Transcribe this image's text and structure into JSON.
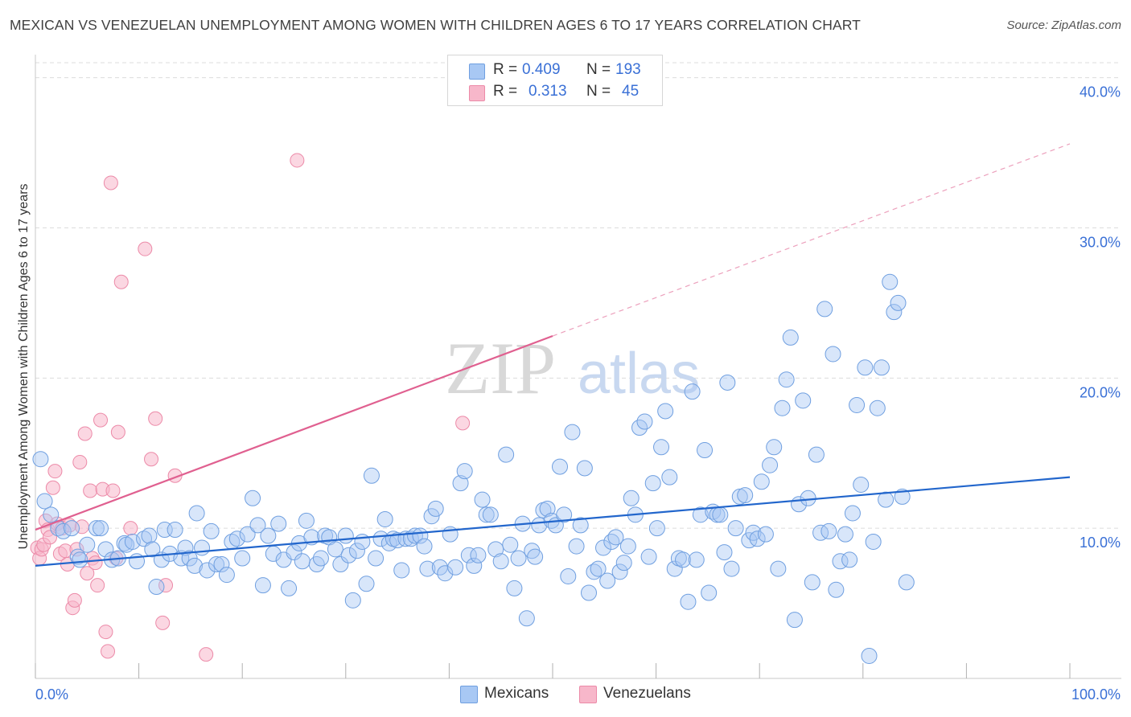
{
  "header": {
    "title": "MEXICAN VS VENEZUELAN UNEMPLOYMENT AMONG WOMEN WITH CHILDREN AGES 6 TO 17 YEARS CORRELATION CHART",
    "source": "Source: ZipAtlas.com"
  },
  "watermark": {
    "zip": "ZIP",
    "atlas": "atlas"
  },
  "legend": {
    "rows": [
      {
        "r_label": "R =",
        "r_value": "0.409",
        "n_label": "N =",
        "n_value": "193",
        "color": "#a8c8f4"
      },
      {
        "r_label": "R =",
        "r_value": "0.313",
        "n_label": "N =",
        "n_value": "45",
        "color": "#f7b7ca"
      }
    ]
  },
  "bottom_legend": [
    {
      "label": "Mexicans",
      "color": "#a8c8f4"
    },
    {
      "label": "Venezuelans",
      "color": "#f7b7ca"
    }
  ],
  "colors": {
    "mexicans_fill": "#a8c8f4",
    "mexicans_stroke": "#6f9fe0",
    "mexicans_line": "#2266cc",
    "venezuelans_fill": "#f7b7ca",
    "venezuelans_stroke": "#ec8aa8",
    "venezuelans_line": "#e06090",
    "tick_label": "#3a70d6",
    "grid": "#dcdcdc"
  },
  "chart_data": {
    "type": "scatter",
    "title": "MEXICAN VS VENEZUELAN UNEMPLOYMENT AMONG WOMEN WITH CHILDREN AGES 6 TO 17 YEARS CORRELATION CHART",
    "xlabel": "",
    "ylabel": "Unemployment Among Women with Children Ages 6 to 17 years",
    "xlim": [
      0,
      100
    ],
    "ylim": [
      0,
      41
    ],
    "x_tick_labels": [
      "0.0%",
      "100.0%"
    ],
    "y_ticks": [
      10,
      20,
      30,
      40
    ],
    "y_tick_labels": [
      "10.0%",
      "20.0%",
      "30.0%",
      "40.0%"
    ],
    "grid": true,
    "legend_position": "top-center",
    "series": [
      {
        "name": "Mexicans",
        "r": 0.409,
        "n": 193,
        "trend": {
          "x": [
            0,
            100
          ],
          "y": [
            7.5,
            13.4
          ]
        },
        "points": [
          [
            0.5,
            14.6
          ],
          [
            0.9,
            11.8
          ],
          [
            1.5,
            10.9
          ],
          [
            2.2,
            10.0
          ],
          [
            2.7,
            9.8
          ],
          [
            3.5,
            10.0
          ],
          [
            4.1,
            8.1
          ],
          [
            4.3,
            7.9
          ],
          [
            5.0,
            8.9
          ],
          [
            5.9,
            10.0
          ],
          [
            6.3,
            10.0
          ],
          [
            6.8,
            8.6
          ],
          [
            7.4,
            7.9
          ],
          [
            8.0,
            8.0
          ],
          [
            8.6,
            9.0
          ],
          [
            8.8,
            8.9
          ],
          [
            9.4,
            9.1
          ],
          [
            9.8,
            7.8
          ],
          [
            10.5,
            9.3
          ],
          [
            11.0,
            9.5
          ],
          [
            11.3,
            8.6
          ],
          [
            11.7,
            6.1
          ],
          [
            12.2,
            7.9
          ],
          [
            12.5,
            9.9
          ],
          [
            13.0,
            8.3
          ],
          [
            13.5,
            9.9
          ],
          [
            14.1,
            8.0
          ],
          [
            14.5,
            8.7
          ],
          [
            14.9,
            8.0
          ],
          [
            15.4,
            7.5
          ],
          [
            15.6,
            11.0
          ],
          [
            16.1,
            8.7
          ],
          [
            16.6,
            7.2
          ],
          [
            17.0,
            9.8
          ],
          [
            17.5,
            7.6
          ],
          [
            18.0,
            7.6
          ],
          [
            18.5,
            6.9
          ],
          [
            19.0,
            9.1
          ],
          [
            19.5,
            9.3
          ],
          [
            20.0,
            8.0
          ],
          [
            20.5,
            9.6
          ],
          [
            21.0,
            12.0
          ],
          [
            21.5,
            10.2
          ],
          [
            22.0,
            6.2
          ],
          [
            22.5,
            9.5
          ],
          [
            23.0,
            8.3
          ],
          [
            23.5,
            10.3
          ],
          [
            24.0,
            7.9
          ],
          [
            24.5,
            6.0
          ],
          [
            25.0,
            8.4
          ],
          [
            25.5,
            9.0
          ],
          [
            25.8,
            7.8
          ],
          [
            26.2,
            10.5
          ],
          [
            26.7,
            9.4
          ],
          [
            27.2,
            7.6
          ],
          [
            27.6,
            8.0
          ],
          [
            28.0,
            9.5
          ],
          [
            28.4,
            9.4
          ],
          [
            29.0,
            8.6
          ],
          [
            29.5,
            7.6
          ],
          [
            30.0,
            9.5
          ],
          [
            30.3,
            8.2
          ],
          [
            30.7,
            5.2
          ],
          [
            31.1,
            8.5
          ],
          [
            31.6,
            9.1
          ],
          [
            32.0,
            6.3
          ],
          [
            32.5,
            13.5
          ],
          [
            32.9,
            8.0
          ],
          [
            33.4,
            9.3
          ],
          [
            33.8,
            10.6
          ],
          [
            34.2,
            9.0
          ],
          [
            34.6,
            9.3
          ],
          [
            35.0,
            9.2
          ],
          [
            35.4,
            7.2
          ],
          [
            35.8,
            9.3
          ],
          [
            36.3,
            9.3
          ],
          [
            36.7,
            9.5
          ],
          [
            37.2,
            9.5
          ],
          [
            37.6,
            8.8
          ],
          [
            37.9,
            7.3
          ],
          [
            38.3,
            10.8
          ],
          [
            38.7,
            11.3
          ],
          [
            39.1,
            7.4
          ],
          [
            39.6,
            7.0
          ],
          [
            40.1,
            9.6
          ],
          [
            40.6,
            7.4
          ],
          [
            41.1,
            13.0
          ],
          [
            41.5,
            13.8
          ],
          [
            41.9,
            8.2
          ],
          [
            42.4,
            7.5
          ],
          [
            42.8,
            8.2
          ],
          [
            43.2,
            11.9
          ],
          [
            43.6,
            10.9
          ],
          [
            44.0,
            10.9
          ],
          [
            44.5,
            8.6
          ],
          [
            45.0,
            7.8
          ],
          [
            45.5,
            14.9
          ],
          [
            45.9,
            8.9
          ],
          [
            46.3,
            6.0
          ],
          [
            46.7,
            8.0
          ],
          [
            47.1,
            10.3
          ],
          [
            47.5,
            4.0
          ],
          [
            48.0,
            8.5
          ],
          [
            48.3,
            8.1
          ],
          [
            48.7,
            10.2
          ],
          [
            49.1,
            11.2
          ],
          [
            49.5,
            11.3
          ],
          [
            49.9,
            10.5
          ],
          [
            50.3,
            10.2
          ],
          [
            50.7,
            14.1
          ],
          [
            51.1,
            10.9
          ],
          [
            51.5,
            6.8
          ],
          [
            51.9,
            16.4
          ],
          [
            52.3,
            8.8
          ],
          [
            52.7,
            10.2
          ],
          [
            53.1,
            14.0
          ],
          [
            53.5,
            5.7
          ],
          [
            54.0,
            7.1
          ],
          [
            54.4,
            7.3
          ],
          [
            54.9,
            8.7
          ],
          [
            55.3,
            6.5
          ],
          [
            55.7,
            9.1
          ],
          [
            56.1,
            9.4
          ],
          [
            56.5,
            7.1
          ],
          [
            56.9,
            7.7
          ],
          [
            57.3,
            8.8
          ],
          [
            57.6,
            12.0
          ],
          [
            58.0,
            10.9
          ],
          [
            58.4,
            16.7
          ],
          [
            58.9,
            17.1
          ],
          [
            59.3,
            8.1
          ],
          [
            59.7,
            13.0
          ],
          [
            60.1,
            10.0
          ],
          [
            60.5,
            15.4
          ],
          [
            60.9,
            17.8
          ],
          [
            61.3,
            13.4
          ],
          [
            61.8,
            7.3
          ],
          [
            62.2,
            8.0
          ],
          [
            62.6,
            7.9
          ],
          [
            63.1,
            5.1
          ],
          [
            63.5,
            19.1
          ],
          [
            63.9,
            7.9
          ],
          [
            64.3,
            10.9
          ],
          [
            64.7,
            15.2
          ],
          [
            65.1,
            5.7
          ],
          [
            65.5,
            11.1
          ],
          [
            65.9,
            10.9
          ],
          [
            66.2,
            10.9
          ],
          [
            66.6,
            8.4
          ],
          [
            66.9,
            19.7
          ],
          [
            67.3,
            7.3
          ],
          [
            67.7,
            10.0
          ],
          [
            68.1,
            12.1
          ],
          [
            68.6,
            12.2
          ],
          [
            69.0,
            9.2
          ],
          [
            69.4,
            9.7
          ],
          [
            69.8,
            9.3
          ],
          [
            70.2,
            13.1
          ],
          [
            70.6,
            9.6
          ],
          [
            71.0,
            14.2
          ],
          [
            71.4,
            15.4
          ],
          [
            71.8,
            7.3
          ],
          [
            72.2,
            18.0
          ],
          [
            72.6,
            19.9
          ],
          [
            73.0,
            22.7
          ],
          [
            73.4,
            3.9
          ],
          [
            73.8,
            11.6
          ],
          [
            74.2,
            18.5
          ],
          [
            74.7,
            12.0
          ],
          [
            75.1,
            6.4
          ],
          [
            75.5,
            14.9
          ],
          [
            75.9,
            9.7
          ],
          [
            76.3,
            24.6
          ],
          [
            76.7,
            9.8
          ],
          [
            77.1,
            21.6
          ],
          [
            77.4,
            5.9
          ],
          [
            77.8,
            7.8
          ],
          [
            78.3,
            9.6
          ],
          [
            78.7,
            7.9
          ],
          [
            79.0,
            11.0
          ],
          [
            79.4,
            18.2
          ],
          [
            79.8,
            12.9
          ],
          [
            80.2,
            20.7
          ],
          [
            80.6,
            1.5
          ],
          [
            81.0,
            9.1
          ],
          [
            81.4,
            18.0
          ],
          [
            81.8,
            20.7
          ],
          [
            82.2,
            11.9
          ],
          [
            82.6,
            26.4
          ],
          [
            83.0,
            24.4
          ],
          [
            83.4,
            25.0
          ],
          [
            83.8,
            12.1
          ],
          [
            84.2,
            6.4
          ]
        ]
      },
      {
        "name": "Venezuelans",
        "r": 0.313,
        "n": 45,
        "trend": {
          "x": [
            0,
            50
          ],
          "y": [
            9.9,
            22.8
          ]
        },
        "trend_extended": {
          "x": [
            50,
            100
          ],
          "y": [
            22.8,
            35.6
          ]
        },
        "points": [
          [
            0.2,
            8.7
          ],
          [
            0.4,
            8.0
          ],
          [
            0.6,
            8.6
          ],
          [
            0.8,
            8.9
          ],
          [
            1.0,
            10.5
          ],
          [
            1.2,
            9.9
          ],
          [
            1.4,
            9.4
          ],
          [
            1.7,
            12.7
          ],
          [
            1.9,
            13.8
          ],
          [
            2.1,
            10.3
          ],
          [
            2.4,
            8.3
          ],
          [
            2.6,
            10.0
          ],
          [
            2.9,
            8.5
          ],
          [
            3.1,
            7.6
          ],
          [
            3.3,
            10.2
          ],
          [
            3.6,
            4.7
          ],
          [
            3.8,
            5.2
          ],
          [
            4.0,
            8.6
          ],
          [
            4.3,
            14.4
          ],
          [
            4.5,
            10.1
          ],
          [
            4.8,
            16.3
          ],
          [
            5.0,
            7.0
          ],
          [
            5.3,
            12.5
          ],
          [
            5.5,
            8.0
          ],
          [
            5.8,
            7.7
          ],
          [
            6.0,
            6.2
          ],
          [
            6.3,
            17.2
          ],
          [
            6.5,
            12.6
          ],
          [
            6.8,
            3.1
          ],
          [
            7.0,
            1.8
          ],
          [
            7.3,
            33.0
          ],
          [
            7.5,
            12.5
          ],
          [
            7.8,
            8.0
          ],
          [
            8.0,
            16.4
          ],
          [
            8.3,
            26.4
          ],
          [
            9.2,
            10.0
          ],
          [
            10.6,
            28.6
          ],
          [
            11.2,
            14.6
          ],
          [
            11.6,
            17.3
          ],
          [
            12.3,
            3.7
          ],
          [
            12.6,
            6.2
          ],
          [
            13.5,
            13.5
          ],
          [
            16.5,
            1.6
          ],
          [
            25.3,
            34.5
          ],
          [
            41.3,
            17.0
          ]
        ]
      }
    ]
  }
}
